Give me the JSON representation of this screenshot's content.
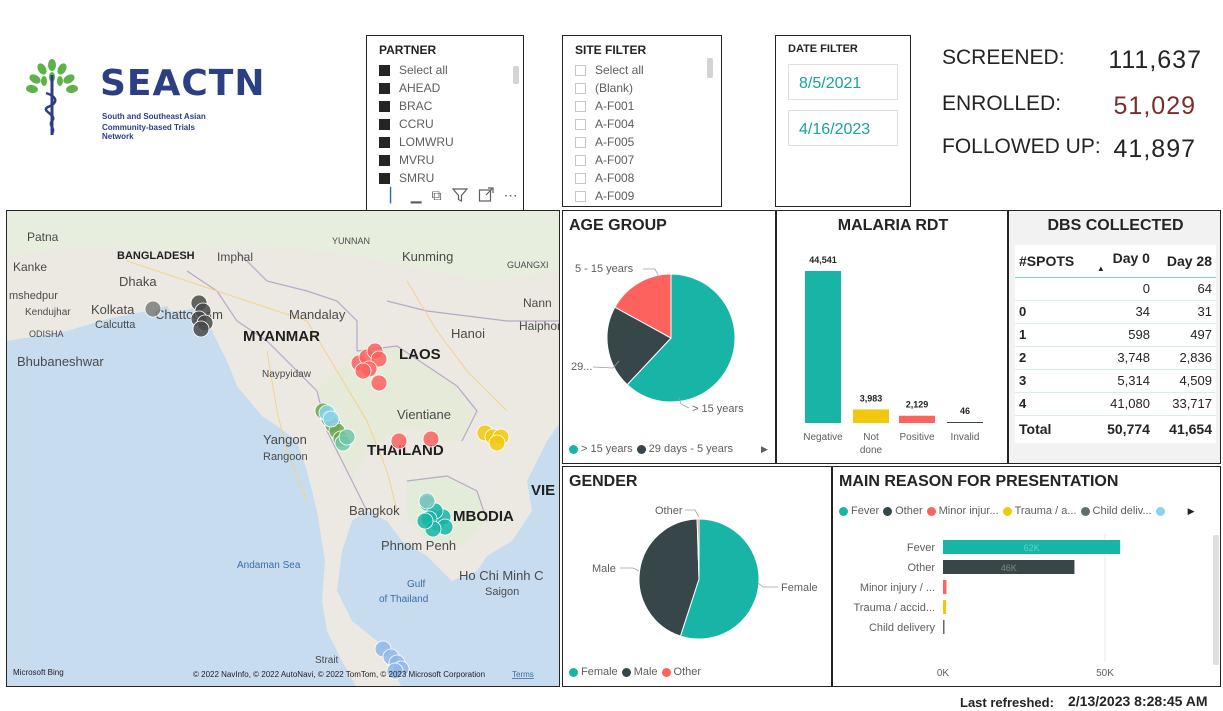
{
  "logo": {
    "brand": "SEACTN",
    "tagline_1": "South and Southeast Asian",
    "tagline_2": "Community-based Trials Network"
  },
  "partner_slicer": {
    "title": "PARTNER",
    "items": [
      {
        "label": "Select all",
        "checked": true
      },
      {
        "label": "AHEAD",
        "checked": true
      },
      {
        "label": "BRAC",
        "checked": true
      },
      {
        "label": "CCRU",
        "checked": true
      },
      {
        "label": "LOMWRU",
        "checked": true
      },
      {
        "label": "MVRU",
        "checked": true
      },
      {
        "label": "SMRU",
        "checked": true
      }
    ]
  },
  "site_slicer": {
    "title": "SITE FILTER",
    "items": [
      {
        "label": "Select all",
        "checked": false
      },
      {
        "label": "(Blank)",
        "checked": false
      },
      {
        "label": "A-F001",
        "checked": false
      },
      {
        "label": "A-F004",
        "checked": false
      },
      {
        "label": "A-F005",
        "checked": false
      },
      {
        "label": "A-F007",
        "checked": false
      },
      {
        "label": "A-F008",
        "checked": false
      },
      {
        "label": "A-F009",
        "checked": false
      }
    ]
  },
  "date_filter": {
    "title": "DATE FILTER",
    "start": "8/5/2021",
    "end": "4/16/2023"
  },
  "kpis": {
    "screened_label": "SCREENED:",
    "screened_value": "111,637",
    "enrolled_label": "ENROLLED:",
    "enrolled_value": "51,029",
    "followed_label": "FOLLOWED UP:",
    "followed_value": "41,897"
  },
  "map": {
    "labels": [
      "Patna",
      "BANGLADESH",
      "Imphal",
      "YUNNAN",
      "Kunming",
      "GUANGXI",
      "Kanke",
      "Dhaka",
      "mshedpur",
      "Kolkata",
      "Calcutta",
      "Chattogram",
      "Mandalay",
      "Nann",
      "Kendujhar",
      "ODISHA",
      "MYANMAR",
      "Hanoi",
      "Haiphon",
      "Bhubaneshwar",
      "LAOS",
      "Naypyidaw",
      "Vientiane",
      "Yangon",
      "Rangoon",
      "THAILAND",
      "VIE",
      "Bangkok",
      "MBODIA",
      "Phnom Penh",
      "Andaman Sea",
      "Ho Chi Minh C",
      "Saigon",
      "Gulf",
      "of Thailand",
      "Strait"
    ],
    "attribution": "© 2022 NavInfo, © 2022 AutoNavi, © 2022 TomTom, © 2023 Microsoft Corporation",
    "terms": "Terms",
    "bing": "Microsoft Bing"
  },
  "age_group": {
    "title": "AGE GROUP",
    "slice_labels": {
      "a": "5 - 15 years",
      "b": "29...",
      "c": "> 15 years"
    },
    "legend": [
      "> 15 years",
      "29 days - 5 years"
    ]
  },
  "malaria_rdt": {
    "title": "MALARIA RDT"
  },
  "dbs": {
    "title": "DBS COLLECTED",
    "headers": [
      "#SPOTS",
      "Day 0",
      "Day 28"
    ],
    "rows": [
      [
        "",
        "0",
        "64"
      ],
      [
        "0",
        "34",
        "31"
      ],
      [
        "1",
        "598",
        "497"
      ],
      [
        "2",
        "3,748",
        "2,836"
      ],
      [
        "3",
        "5,314",
        "4,509"
      ],
      [
        "4",
        "41,080",
        "33,717"
      ]
    ],
    "total": [
      "Total",
      "50,774",
      "41,654"
    ]
  },
  "gender": {
    "title": "GENDER",
    "slice_labels": {
      "other": "Other",
      "male": "Male",
      "female": "Female"
    },
    "legend": [
      "Female",
      "Male",
      "Other"
    ]
  },
  "reason": {
    "title": "MAIN REASON FOR PRESENTATION",
    "legend": [
      "Fever",
      "Other",
      "Minor injur...",
      "Trauma / a...",
      "Child deliv..."
    ]
  },
  "refreshed": {
    "label": "Last refreshed:",
    "value": "2/13/2023 8:28:45 AM"
  },
  "colors": {
    "teal": "#18b5a6",
    "dark": "#374649",
    "red": "#fd625e",
    "yellow": "#f2c80f",
    "gray": "#5f6b6d",
    "lightblue": "#8ad4eb",
    "enrolled": "#7b2c2c"
  },
  "chart_data": [
    {
      "type": "pie",
      "title": "AGE GROUP",
      "categories": [
        "> 15 years",
        "29 days - 5 years",
        "5 - 15 years"
      ],
      "values": [
        62,
        21,
        17
      ]
    },
    {
      "type": "bar",
      "title": "MALARIA RDT",
      "categories": [
        "Negative",
        "Not done",
        "Positive",
        "Invalid"
      ],
      "values": [
        44541,
        3983,
        2129,
        46
      ],
      "data_labels": [
        "44,541",
        "3,983",
        "2,129",
        "46"
      ],
      "colors": [
        "#18b5a6",
        "#f2c80f",
        "#fd625e",
        "#374649"
      ]
    },
    {
      "type": "pie",
      "title": "GENDER",
      "categories": [
        "Female",
        "Male",
        "Other"
      ],
      "values": [
        55,
        44.5,
        0.5
      ]
    },
    {
      "type": "bar",
      "orientation": "horizontal",
      "title": "MAIN REASON FOR PRESENTATION",
      "categories": [
        "Fever",
        "Other",
        "Minor injury / ...",
        "Trauma / accid...",
        "Child delivery"
      ],
      "values": [
        62000,
        46000,
        1200,
        1100,
        150
      ],
      "data_labels": [
        "62K",
        "46K",
        "",
        "",
        ""
      ],
      "colors": [
        "#18b5a6",
        "#374649",
        "#fd625e",
        "#f2c80f",
        "#5f6b6d"
      ],
      "xticks": [
        "0K",
        "50K"
      ],
      "xlim": [
        0,
        70000
      ]
    }
  ]
}
